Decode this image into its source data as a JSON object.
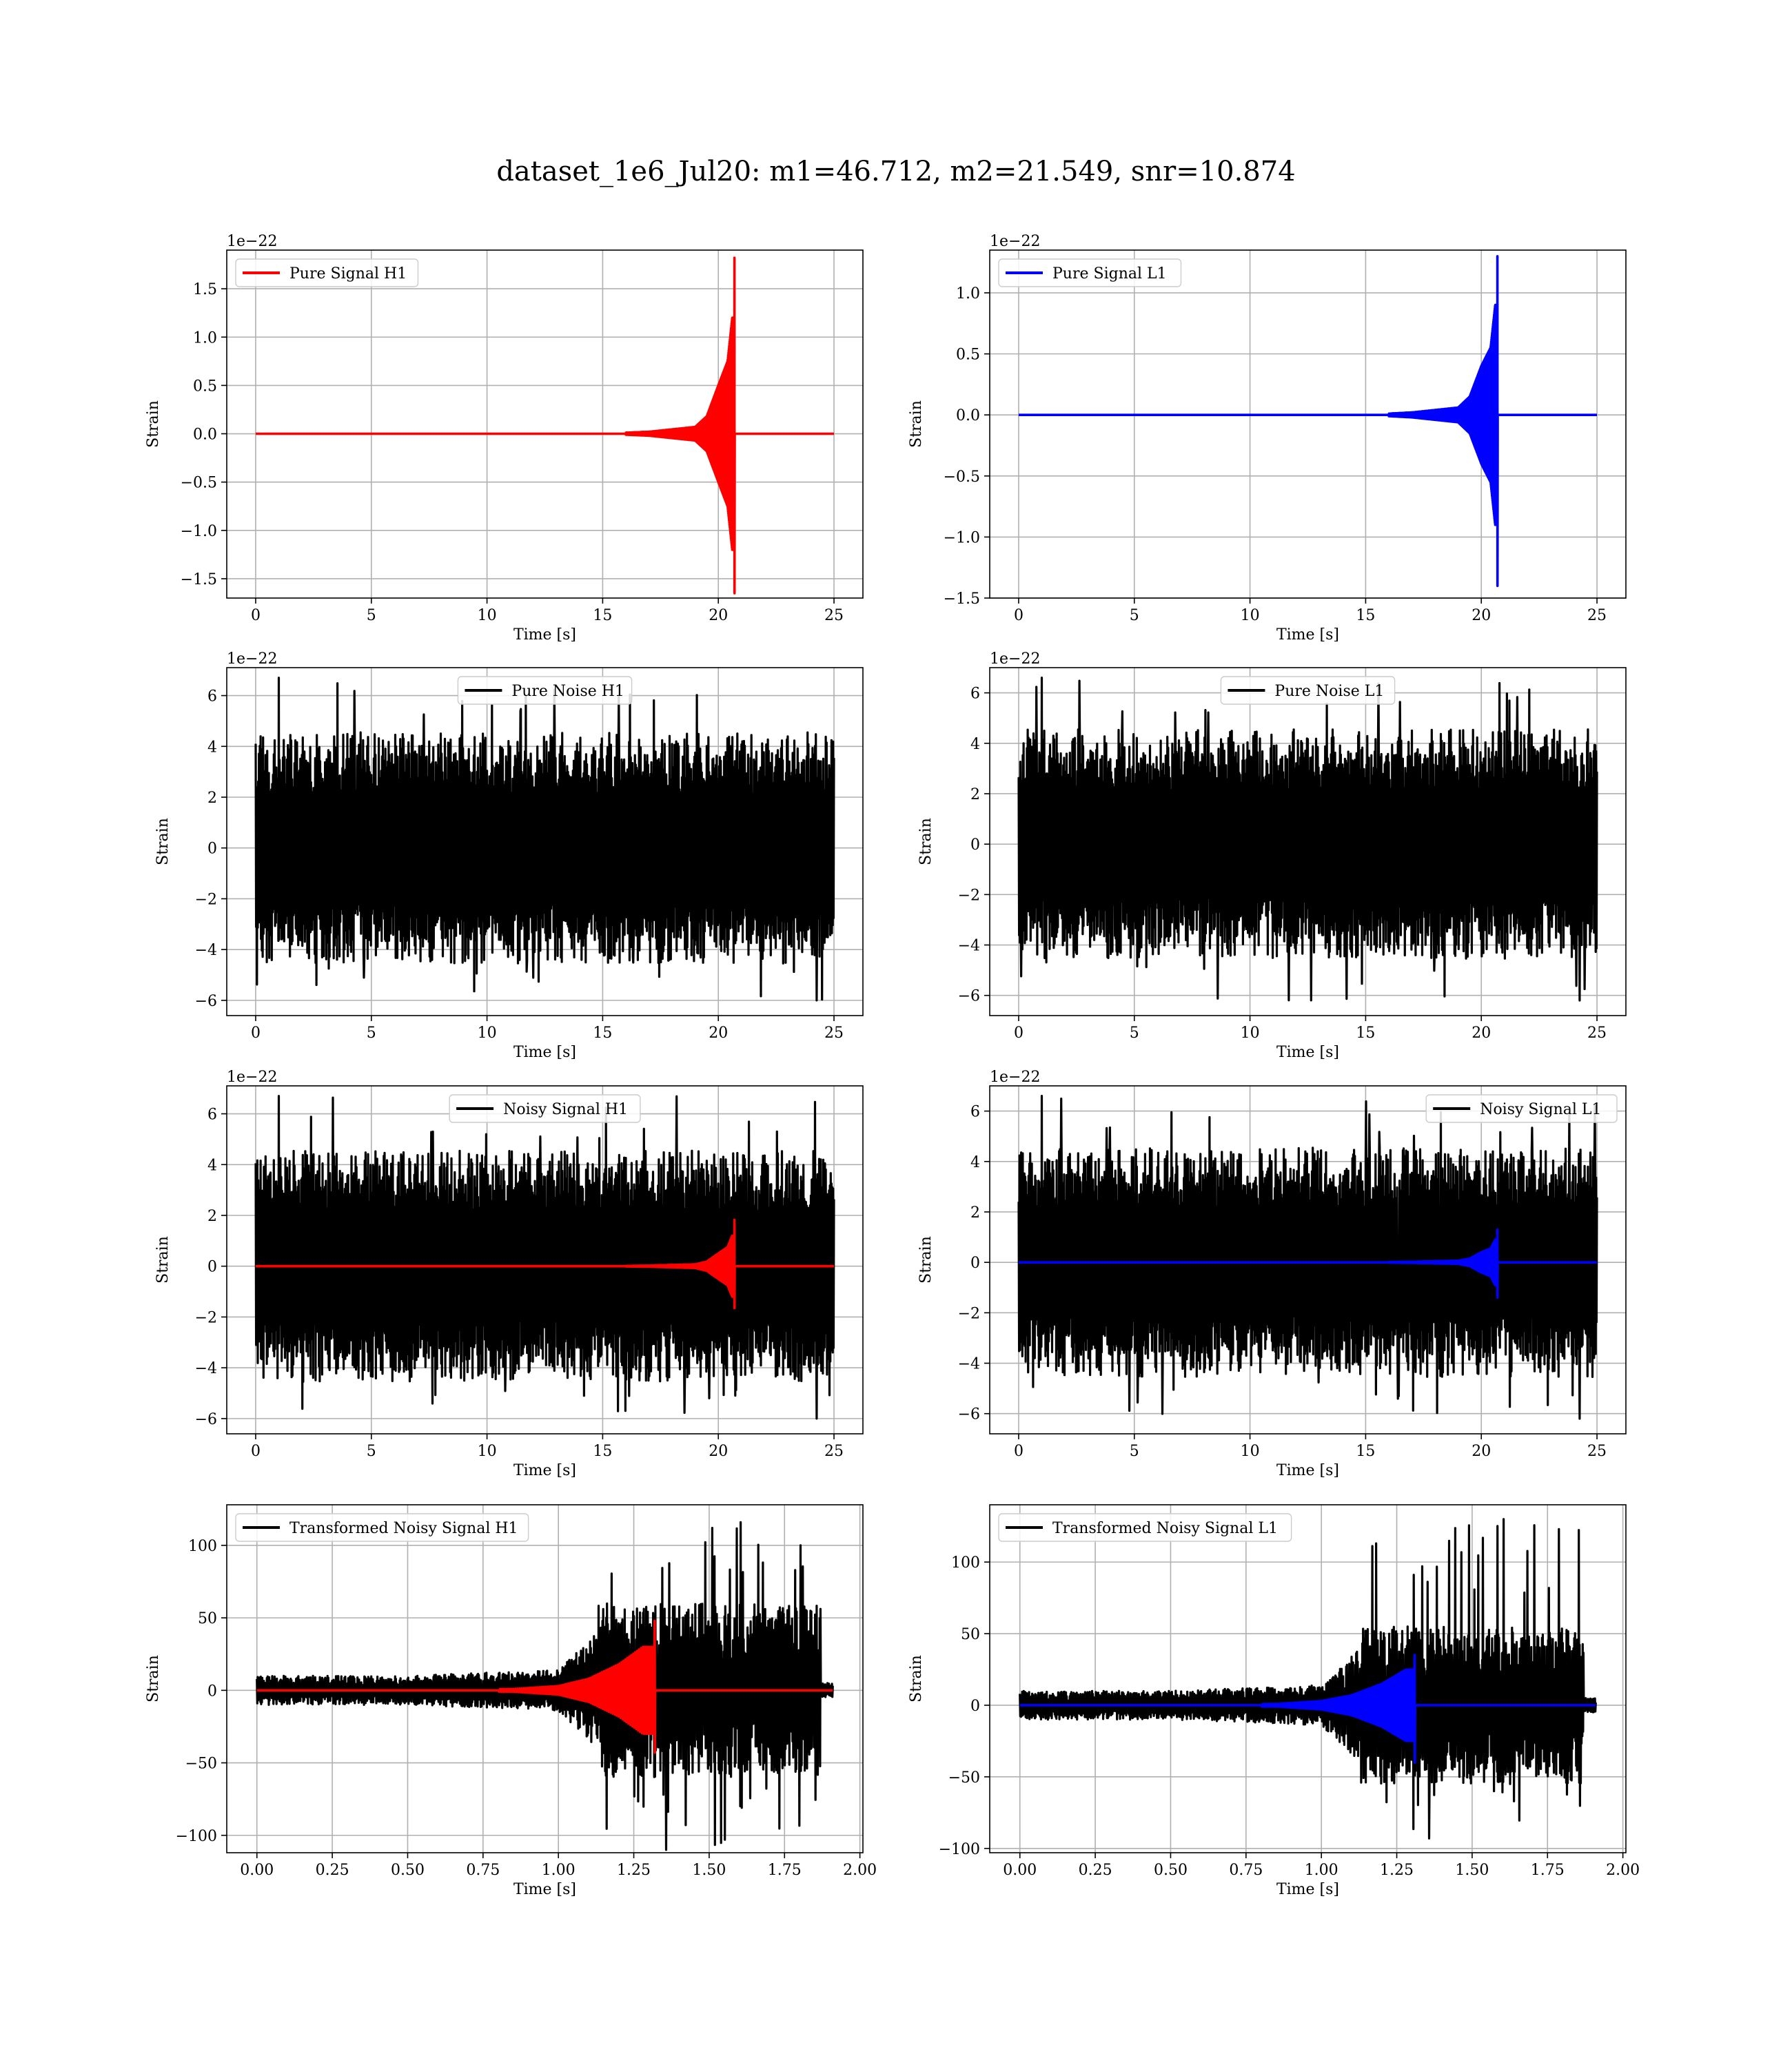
{
  "figure": {
    "suptitle": "dataset_1e6_Jul20: m1=46.712, m2=21.549, snr=10.874",
    "colors": {
      "h1": "#ff0000",
      "l1": "#0000ff",
      "noise": "#000000",
      "grid": "#b0b0b0"
    }
  },
  "chart_data": [
    {
      "type": "line",
      "panel": "pure-signal-h1",
      "detector": "H1",
      "title": "",
      "xlabel": "Time [s]",
      "ylabel": "Strain",
      "offset_text": "1e−22",
      "legend": "upper left",
      "grid": true,
      "xlim": [
        -1.25,
        26.25
      ],
      "ylim": [
        -1.7,
        1.9
      ],
      "xticks": [
        0,
        5,
        10,
        15,
        20,
        25
      ],
      "xtick_labels": [
        "0",
        "5",
        "10",
        "15",
        "20",
        "25"
      ],
      "yticks": [
        -1.5,
        -1.0,
        -0.5,
        0.0,
        0.5,
        1.0,
        1.5
      ],
      "ytick_labels": [
        "−1.5",
        "−1.0",
        "−0.5",
        "0.0",
        "0.5",
        "1.0",
        "1.5"
      ],
      "series": [
        {
          "name": "Pure Signal H1",
          "color": "#ff0000",
          "kind": "chirp",
          "x_end": 25.0,
          "merger": 20.7,
          "peak_pos": 1.82,
          "peak_neg": -1.65,
          "envelope": [
            [
              17.0,
              0.02
            ],
            [
              19.0,
              0.07
            ],
            [
              19.5,
              0.18
            ],
            [
              20.0,
              0.5
            ],
            [
              20.4,
              0.75
            ],
            [
              20.6,
              1.2
            ]
          ]
        }
      ]
    },
    {
      "type": "line",
      "panel": "pure-signal-l1",
      "detector": "L1",
      "title": "",
      "xlabel": "Time [s]",
      "ylabel": "Strain",
      "offset_text": "1e−22",
      "legend": "upper left",
      "grid": true,
      "xlim": [
        -1.25,
        26.25
      ],
      "ylim": [
        -1.5,
        1.35
      ],
      "xticks": [
        0,
        5,
        10,
        15,
        20,
        25
      ],
      "xtick_labels": [
        "0",
        "5",
        "10",
        "15",
        "20",
        "25"
      ],
      "yticks": [
        -1.5,
        -1.0,
        -0.5,
        0.0,
        0.5,
        1.0
      ],
      "ytick_labels": [
        "−1.5",
        "−1.0",
        "−0.5",
        "0.0",
        "0.5",
        "1.0"
      ],
      "series": [
        {
          "name": "Pure Signal L1",
          "color": "#0000ff",
          "kind": "chirp",
          "x_end": 25.0,
          "merger": 20.7,
          "peak_pos": 1.3,
          "peak_neg": -1.4,
          "envelope": [
            [
              17.0,
              0.02
            ],
            [
              19.0,
              0.06
            ],
            [
              19.5,
              0.15
            ],
            [
              20.0,
              0.4
            ],
            [
              20.4,
              0.55
            ],
            [
              20.6,
              0.9
            ]
          ]
        }
      ]
    },
    {
      "type": "line",
      "panel": "pure-noise-h1",
      "detector": "H1",
      "title": "",
      "xlabel": "Time [s]",
      "ylabel": "Strain",
      "offset_text": "1e−22",
      "legend": "upper center",
      "grid": true,
      "xlim": [
        -1.25,
        26.25
      ],
      "ylim": [
        -6.6,
        7.1
      ],
      "xticks": [
        0,
        5,
        10,
        15,
        20,
        25
      ],
      "xtick_labels": [
        "0",
        "5",
        "10",
        "15",
        "20",
        "25"
      ],
      "yticks": [
        -6,
        -4,
        -2,
        0,
        2,
        4,
        6
      ],
      "ytick_labels": [
        "−6",
        "−4",
        "−2",
        "0",
        "2",
        "4",
        "6"
      ],
      "series": [
        {
          "name": "Pure Noise H1",
          "color": "#000000",
          "kind": "noise",
          "x_end": 25.0,
          "band": 3.5,
          "max": 6.7,
          "min": -6.0
        }
      ]
    },
    {
      "type": "line",
      "panel": "pure-noise-l1",
      "detector": "L1",
      "title": "",
      "xlabel": "Time [s]",
      "ylabel": "Strain",
      "offset_text": "1e−22",
      "legend": "upper center",
      "grid": true,
      "xlim": [
        -1.25,
        26.25
      ],
      "ylim": [
        -6.8,
        7.0
      ],
      "xticks": [
        0,
        5,
        10,
        15,
        20,
        25
      ],
      "xtick_labels": [
        "0",
        "5",
        "10",
        "15",
        "20",
        "25"
      ],
      "yticks": [
        -6,
        -4,
        -2,
        0,
        2,
        4,
        6
      ],
      "ytick_labels": [
        "−6",
        "−4",
        "−2",
        "0",
        "2",
        "4",
        "6"
      ],
      "series": [
        {
          "name": "Pure Noise L1",
          "color": "#000000",
          "kind": "noise",
          "x_end": 25.0,
          "band": 3.5,
          "max": 6.6,
          "min": -6.2
        }
      ]
    },
    {
      "type": "line",
      "panel": "noisy-signal-h1",
      "detector": "H1",
      "title": "",
      "xlabel": "Time [s]",
      "ylabel": "Strain",
      "offset_text": "1e−22",
      "legend": "upper center",
      "grid": true,
      "xlim": [
        -1.25,
        26.25
      ],
      "ylim": [
        -6.6,
        7.1
      ],
      "xticks": [
        0,
        5,
        10,
        15,
        20,
        25
      ],
      "xtick_labels": [
        "0",
        "5",
        "10",
        "15",
        "20",
        "25"
      ],
      "yticks": [
        -6,
        -4,
        -2,
        0,
        2,
        4,
        6
      ],
      "ytick_labels": [
        "−6",
        "−4",
        "−2",
        "0",
        "2",
        "4",
        "6"
      ],
      "series": [
        {
          "name": "Noisy Signal H1",
          "color": "#000000",
          "kind": "noise",
          "x_end": 25.0,
          "band": 3.5,
          "max": 6.7,
          "min": -6.0
        },
        {
          "color": "#ff0000",
          "kind": "chirp",
          "x_end": 25.0,
          "merger": 20.7,
          "peak_pos": 1.82,
          "peak_neg": -1.65,
          "envelope": [
            [
              17.0,
              0.02
            ],
            [
              19.0,
              0.07
            ],
            [
              19.5,
              0.18
            ],
            [
              20.0,
              0.5
            ],
            [
              20.4,
              0.75
            ],
            [
              20.6,
              1.2
            ]
          ]
        }
      ]
    },
    {
      "type": "line",
      "panel": "noisy-signal-l1",
      "detector": "L1",
      "title": "",
      "xlabel": "Time [s]",
      "ylabel": "Strain",
      "offset_text": "1e−22",
      "legend": "upper right",
      "grid": true,
      "xlim": [
        -1.25,
        26.25
      ],
      "ylim": [
        -6.8,
        7.0
      ],
      "xticks": [
        0,
        5,
        10,
        15,
        20,
        25
      ],
      "xtick_labels": [
        "0",
        "5",
        "10",
        "15",
        "20",
        "25"
      ],
      "yticks": [
        -6,
        -4,
        -2,
        0,
        2,
        4,
        6
      ],
      "ytick_labels": [
        "−6",
        "−4",
        "−2",
        "0",
        "2",
        "4",
        "6"
      ],
      "series": [
        {
          "name": "Noisy Signal L1",
          "color": "#000000",
          "kind": "noise",
          "x_end": 25.0,
          "band": 3.5,
          "max": 6.6,
          "min": -6.2
        },
        {
          "color": "#0000ff",
          "kind": "chirp",
          "x_end": 25.0,
          "merger": 20.7,
          "peak_pos": 1.3,
          "peak_neg": -1.4,
          "envelope": [
            [
              17.0,
              0.02
            ],
            [
              19.0,
              0.06
            ],
            [
              19.5,
              0.15
            ],
            [
              20.0,
              0.4
            ],
            [
              20.4,
              0.55
            ],
            [
              20.6,
              0.9
            ]
          ]
        }
      ]
    },
    {
      "type": "line",
      "panel": "transformed-noisy-signal-h1",
      "detector": "H1",
      "title": "",
      "xlabel": "Time [s]",
      "ylabel": "Strain",
      "offset_text": "",
      "legend": "upper left",
      "grid": true,
      "xlim": [
        -0.1,
        2.01
      ],
      "ylim": [
        -112,
        128
      ],
      "xticks": [
        0,
        0.25,
        0.5,
        0.75,
        1.0,
        1.25,
        1.5,
        1.75,
        2.0
      ],
      "xtick_labels": [
        "0.00",
        "0.25",
        "0.50",
        "0.75",
        "1.00",
        "1.25",
        "1.50",
        "1.75",
        "2.00"
      ],
      "yticks": [
        -100,
        -50,
        0,
        50,
        100
      ],
      "ytick_labels": [
        "−100",
        "−50",
        "0",
        "50",
        "100"
      ],
      "series": [
        {
          "name": "Transformed Noisy Signal H1",
          "color": "#000000",
          "kind": "whitened",
          "x_end": 1.91,
          "band_early": 10,
          "band_late": 60,
          "max": 116,
          "min": -110
        },
        {
          "color": "#ff0000",
          "kind": "whitened-chirp",
          "x_end": 1.91,
          "merger": 1.32,
          "peak_pos": 48,
          "peak_neg": -43,
          "envelope": [
            [
              0.85,
              1
            ],
            [
              1.0,
              3
            ],
            [
              1.1,
              8
            ],
            [
              1.2,
              18
            ],
            [
              1.28,
              30
            ]
          ]
        }
      ]
    },
    {
      "type": "line",
      "panel": "transformed-noisy-signal-l1",
      "detector": "L1",
      "title": "",
      "xlabel": "Time [s]",
      "ylabel": "Strain",
      "offset_text": "",
      "legend": "upper left",
      "grid": true,
      "xlim": [
        -0.1,
        2.01
      ],
      "ylim": [
        -103,
        140
      ],
      "xticks": [
        0,
        0.25,
        0.5,
        0.75,
        1.0,
        1.25,
        1.5,
        1.75,
        2.0
      ],
      "xtick_labels": [
        "0.00",
        "0.25",
        "0.50",
        "0.75",
        "1.00",
        "1.25",
        "1.50",
        "1.75",
        "2.00"
      ],
      "yticks": [
        -100,
        -50,
        0,
        50,
        100
      ],
      "ytick_labels": [
        "−100",
        "−50",
        "0",
        "50",
        "100"
      ],
      "series": [
        {
          "name": "Transformed Noisy Signal L1",
          "color": "#000000",
          "kind": "whitened",
          "x_end": 1.91,
          "band_early": 10,
          "band_late": 55,
          "max": 130,
          "min": -93
        },
        {
          "color": "#0000ff",
          "kind": "whitened-chirp",
          "x_end": 1.91,
          "merger": 1.31,
          "peak_pos": 35,
          "peak_neg": -40,
          "envelope": [
            [
              0.85,
              1
            ],
            [
              1.0,
              3
            ],
            [
              1.1,
              7
            ],
            [
              1.2,
              15
            ],
            [
              1.28,
              25
            ]
          ]
        }
      ]
    }
  ]
}
